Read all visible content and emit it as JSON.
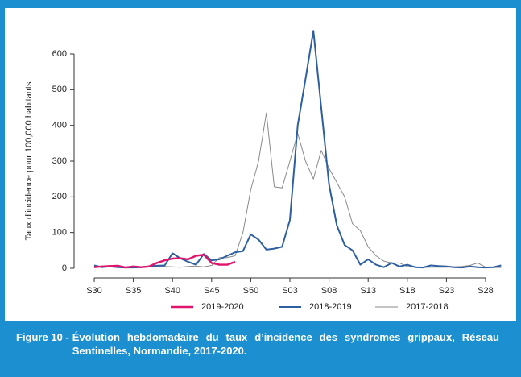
{
  "chart_data": {
    "type": "line",
    "figure_label": "Figure 10 -",
    "caption": "Évolution hebdomadaire du taux d’incidence des syndromes grippaux, Réseau Sentinelles, Normandie, 2017-2020.",
    "ylabel": "Taux d’incidence pour 100,000 habitants",
    "categories": [
      "S30",
      null,
      null,
      null,
      null,
      "S35",
      null,
      null,
      null,
      null,
      "S40",
      null,
      null,
      null,
      null,
      "S45",
      null,
      null,
      null,
      null,
      "S50",
      null,
      null,
      null,
      null,
      "S03",
      null,
      null,
      null,
      null,
      "S08",
      null,
      null,
      null,
      null,
      "S13",
      null,
      null,
      null,
      null,
      "S18",
      null,
      null,
      null,
      null,
      "S23",
      null,
      null,
      null,
      null,
      "S28",
      null,
      null
    ],
    "ylim": [
      0,
      600
    ],
    "yticks": [
      0,
      100,
      200,
      300,
      400,
      500,
      600
    ],
    "grid": false,
    "series": [
      {
        "name": "2019-2020",
        "color": "#e0146c",
        "width": 2.4,
        "values": [
          3,
          5,
          6,
          7,
          2,
          5,
          3,
          5,
          15,
          22,
          27,
          28,
          25,
          35,
          38,
          15,
          10,
          10,
          18,
          null,
          null,
          null,
          null,
          null,
          null,
          null,
          null,
          null,
          null,
          null,
          null,
          null,
          null,
          null,
          null,
          null,
          null,
          null,
          null,
          null,
          null,
          null,
          null,
          null,
          null,
          null,
          null,
          null,
          null,
          null,
          null,
          null,
          null
        ]
      },
      {
        "name": "2018-2019",
        "color": "#2e5fa0",
        "width": 2,
        "values": [
          8,
          3,
          5,
          3,
          2,
          2,
          3,
          5,
          7,
          8,
          42,
          28,
          18,
          10,
          40,
          22,
          25,
          35,
          45,
          48,
          95,
          80,
          52,
          55,
          60,
          135,
          400,
          530,
          665,
          450,
          235,
          120,
          65,
          50,
          10,
          25,
          10,
          3,
          15,
          5,
          10,
          3,
          2,
          8,
          6,
          5,
          3,
          2,
          5,
          3,
          2,
          3,
          8
        ]
      },
      {
        "name": "2017-2018",
        "color": "#8a8a8a",
        "width": 1,
        "values": [
          3,
          5,
          4,
          3,
          3,
          2,
          3,
          4,
          5,
          5,
          4,
          3,
          5,
          6,
          4,
          8,
          30,
          30,
          35,
          100,
          220,
          300,
          435,
          228,
          225,
          300,
          378,
          300,
          250,
          330,
          280,
          240,
          200,
          125,
          105,
          60,
          35,
          20,
          15,
          15,
          5,
          3,
          2,
          3,
          3,
          3,
          4,
          5,
          8,
          15,
          3,
          2,
          2
        ]
      }
    ]
  }
}
